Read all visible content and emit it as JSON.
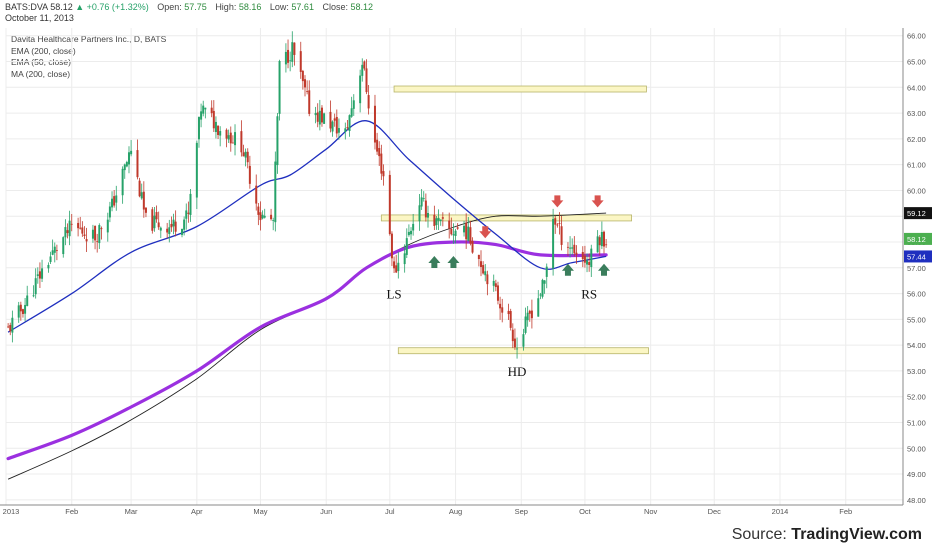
{
  "header": {
    "symbol": "BATS:DVA",
    "price": "58.12",
    "change": "▲ +0.76 (+1.32%)",
    "open_label": "Open:",
    "open": "57.75",
    "high_label": "High:",
    "high": "58.16",
    "low_label": "Low:",
    "low": "57.61",
    "close_label": "Close:",
    "close": "58.12",
    "date": "October 11, 2013"
  },
  "legend": {
    "title": "Davita Healthcare Partners Inc., D, BATS",
    "items": [
      "EMA (200, close)",
      "EMA (50, close)",
      "MA (200, close)"
    ]
  },
  "footer": {
    "source_prefix": "Source: ",
    "source_name": "TradingView.com"
  },
  "colors": {
    "up": "#26a269",
    "down": "#c0392b",
    "ema50": "#1f2fbf",
    "ema200": "#9b30e0",
    "ma200": "#222222",
    "zone_fill": "#fbf6c4",
    "zone_stroke": "#b7b46a",
    "arrow_down": "#d9534f",
    "arrow_up": "#3a7d5c"
  },
  "chart_data": {
    "type": "candlestick",
    "x_tick_labels": [
      "2013",
      "Feb",
      "Mar",
      "Apr",
      "May",
      "Jun",
      "Jul",
      "Aug",
      "Sep",
      "Oct",
      "Nov",
      "Dec",
      "2014",
      "Feb"
    ],
    "y_ticks": [
      "66.00",
      "65.00",
      "64.00",
      "63.00",
      "62.00",
      "61.00",
      "60.00",
      "59.00",
      "58.00",
      "57.00",
      "56.00",
      "55.00",
      "54.00",
      "53.00",
      "52.00",
      "51.00",
      "50.00",
      "49.00",
      "48.00"
    ],
    "ylim": [
      47.8,
      66.3
    ],
    "last_price": "58.12",
    "price_labels": [
      {
        "value": 59.12,
        "text": "59.12",
        "bg": "#111111"
      },
      {
        "value": 58.12,
        "text": "58.12",
        "bg": "#4caf50"
      },
      {
        "value": 57.44,
        "text": "57.44",
        "bg": "#1f2fbf"
      }
    ],
    "close_path": [
      {
        "x": "2013-01-02",
        "y": 54.6
      },
      {
        "x": "2013-01-10",
        "y": 55.6
      },
      {
        "x": "2013-01-20",
        "y": 57.2
      },
      {
        "x": "2013-02-01",
        "y": 58.6
      },
      {
        "x": "2013-02-12",
        "y": 58.2
      },
      {
        "x": "2013-02-20",
        "y": 59.4
      },
      {
        "x": "2013-03-01",
        "y": 61.6
      },
      {
        "x": "2013-03-08",
        "y": 58.8
      },
      {
        "x": "2013-03-20",
        "y": 58.6
      },
      {
        "x": "2013-03-28",
        "y": 59.0
      },
      {
        "x": "2013-04-03",
        "y": 63.2
      },
      {
        "x": "2013-04-12",
        "y": 62.4
      },
      {
        "x": "2013-04-22",
        "y": 61.8
      },
      {
        "x": "2013-05-01",
        "y": 59.0
      },
      {
        "x": "2013-05-07",
        "y": 58.8
      },
      {
        "x": "2013-05-10",
        "y": 64.8
      },
      {
        "x": "2013-05-16",
        "y": 65.5
      },
      {
        "x": "2013-05-24",
        "y": 63.2
      },
      {
        "x": "2013-06-03",
        "y": 62.6
      },
      {
        "x": "2013-06-10",
        "y": 62.2
      },
      {
        "x": "2013-06-18",
        "y": 65.0
      },
      {
        "x": "2013-06-24",
        "y": 61.8
      },
      {
        "x": "2013-06-28",
        "y": 60.6
      },
      {
        "x": "2013-07-03",
        "y": 56.8
      },
      {
        "x": "2013-07-08",
        "y": 57.8
      },
      {
        "x": "2013-07-15",
        "y": 59.6
      },
      {
        "x": "2013-07-22",
        "y": 58.8
      },
      {
        "x": "2013-07-30",
        "y": 58.4
      },
      {
        "x": "2013-08-05",
        "y": 58.6
      },
      {
        "x": "2013-08-12",
        "y": 57.4
      },
      {
        "x": "2013-08-19",
        "y": 56.2
      },
      {
        "x": "2013-08-26",
        "y": 55.0
      },
      {
        "x": "2013-08-30",
        "y": 53.9
      },
      {
        "x": "2013-09-05",
        "y": 55.2
      },
      {
        "x": "2013-09-12",
        "y": 56.4
      },
      {
        "x": "2013-09-16",
        "y": 59.0
      },
      {
        "x": "2013-09-20",
        "y": 58.2
      },
      {
        "x": "2013-09-27",
        "y": 57.6
      },
      {
        "x": "2013-10-03",
        "y": 57.2
      },
      {
        "x": "2013-10-07",
        "y": 58.2
      },
      {
        "x": "2013-10-11",
        "y": 58.12
      }
    ],
    "ema50": [
      {
        "x": "2013-01-02",
        "y": 54.5
      },
      {
        "x": "2013-02-01",
        "y": 56.0
      },
      {
        "x": "2013-03-01",
        "y": 57.6
      },
      {
        "x": "2013-04-01",
        "y": 58.6
      },
      {
        "x": "2013-05-01",
        "y": 60.2
      },
      {
        "x": "2013-05-15",
        "y": 60.6
      },
      {
        "x": "2013-06-01",
        "y": 61.6
      },
      {
        "x": "2013-06-20",
        "y": 62.7
      },
      {
        "x": "2013-07-10",
        "y": 61.2
      },
      {
        "x": "2013-08-01",
        "y": 59.6
      },
      {
        "x": "2013-08-20",
        "y": 58.3
      },
      {
        "x": "2013-09-10",
        "y": 57.0
      },
      {
        "x": "2013-09-25",
        "y": 57.2
      },
      {
        "x": "2013-10-11",
        "y": 57.44
      }
    ],
    "ema200": [
      {
        "x": "2013-01-02",
        "y": 49.6
      },
      {
        "x": "2013-02-01",
        "y": 50.5
      },
      {
        "x": "2013-03-01",
        "y": 51.6
      },
      {
        "x": "2013-04-01",
        "y": 53.0
      },
      {
        "x": "2013-05-01",
        "y": 54.7
      },
      {
        "x": "2013-06-01",
        "y": 55.8
      },
      {
        "x": "2013-06-20",
        "y": 57.0
      },
      {
        "x": "2013-07-10",
        "y": 57.8
      },
      {
        "x": "2013-08-01",
        "y": 58.0
      },
      {
        "x": "2013-08-20",
        "y": 57.9
      },
      {
        "x": "2013-09-10",
        "y": 57.5
      },
      {
        "x": "2013-10-11",
        "y": 57.5
      }
    ],
    "ma200": [
      {
        "x": "2013-01-02",
        "y": 48.8
      },
      {
        "x": "2013-02-01",
        "y": 49.9
      },
      {
        "x": "2013-03-01",
        "y": 51.1
      },
      {
        "x": "2013-04-01",
        "y": 52.7
      },
      {
        "x": "2013-05-01",
        "y": 54.6
      },
      {
        "x": "2013-06-01",
        "y": 55.8
      },
      {
        "x": "2013-06-20",
        "y": 57.0
      },
      {
        "x": "2013-07-10",
        "y": 57.9
      },
      {
        "x": "2013-08-01",
        "y": 58.6
      },
      {
        "x": "2013-08-20",
        "y": 59.0
      },
      {
        "x": "2013-09-10",
        "y": 59.0
      },
      {
        "x": "2013-10-11",
        "y": 59.12
      }
    ],
    "zones": [
      {
        "from": "2013-07-03",
        "to": "2013-10-30",
        "low": 63.85,
        "high": 64.05
      },
      {
        "from": "2013-06-27",
        "to": "2013-10-23",
        "low": 58.85,
        "high": 59.05
      },
      {
        "from": "2013-07-05",
        "to": "2013-10-31",
        "low": 53.7,
        "high": 53.9
      }
    ],
    "annotations": [
      {
        "text": "LS",
        "x": "2013-07-03",
        "y": 55.8
      },
      {
        "text": "HD",
        "x": "2013-08-30",
        "y": 52.8
      },
      {
        "text": "RS",
        "x": "2013-10-03",
        "y": 55.8
      }
    ],
    "arrows": [
      {
        "dir": "down",
        "x": "2013-08-15",
        "y": 58.3
      },
      {
        "dir": "down",
        "x": "2013-09-18",
        "y": 59.5
      },
      {
        "dir": "down",
        "x": "2013-10-07",
        "y": 59.5
      },
      {
        "dir": "up",
        "x": "2013-07-22",
        "y": 57.3
      },
      {
        "dir": "up",
        "x": "2013-07-31",
        "y": 57.3
      },
      {
        "dir": "up",
        "x": "2013-09-23",
        "y": 57.0
      },
      {
        "dir": "up",
        "x": "2013-10-10",
        "y": 57.0
      }
    ]
  }
}
